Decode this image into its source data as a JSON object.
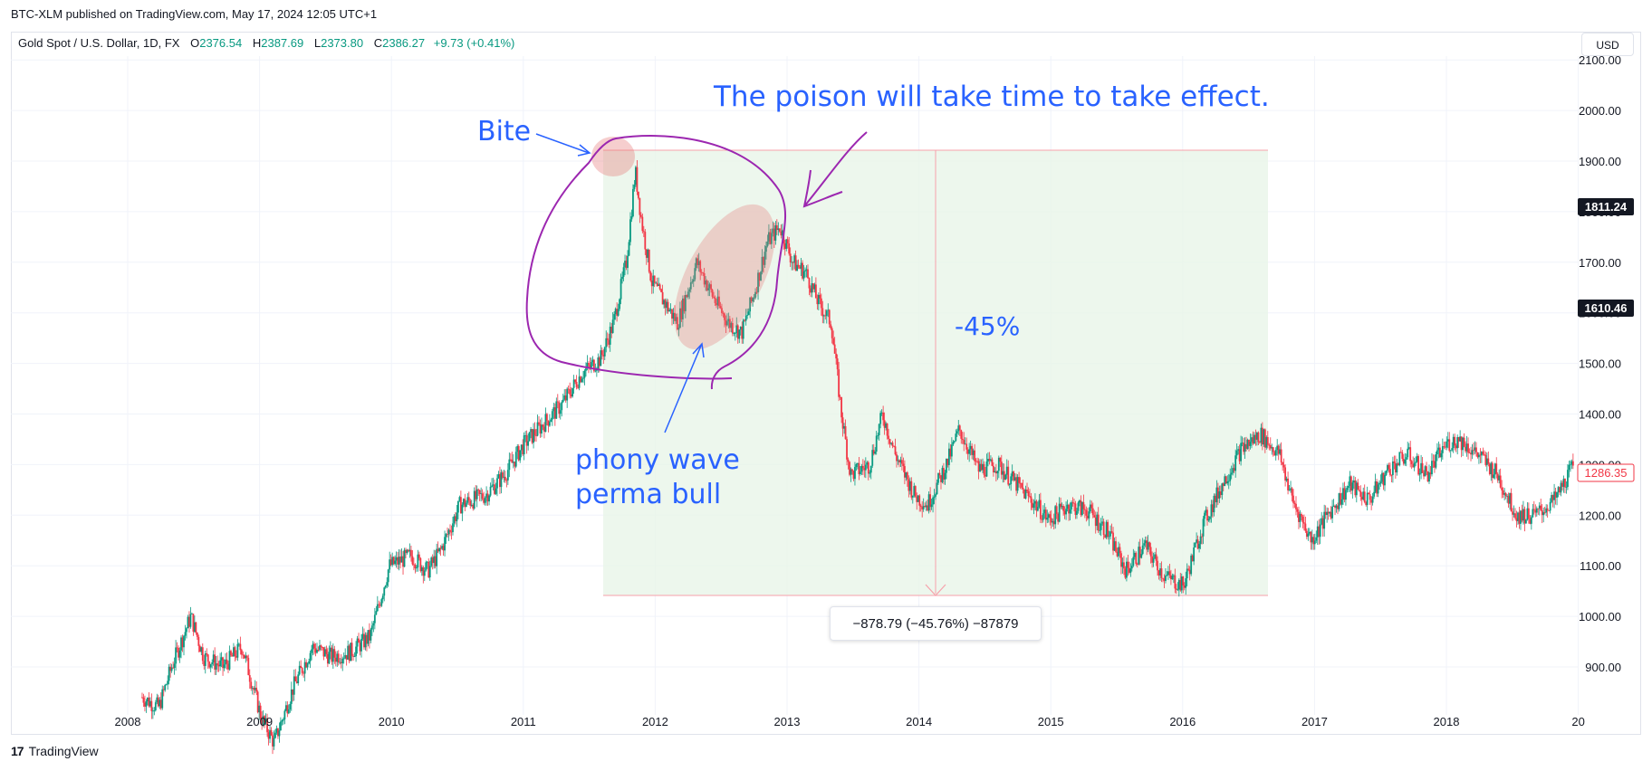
{
  "header": {
    "published": "BTC-XLM published on TradingView.com, May 17, 2024 12:05 UTC+1"
  },
  "legend": {
    "symbol": "Gold Spot / U.S. Dollar, 1D, FX",
    "o_label": "O",
    "o": "2376.54",
    "h_label": "H",
    "h": "2387.69",
    "l_label": "L",
    "l": "2373.80",
    "c_label": "C",
    "c": "2386.27",
    "change": "+9.73 (+0.41%)"
  },
  "currency_button": "USD",
  "footer": {
    "logo": "17",
    "brand": "TradingView"
  },
  "annotations": {
    "poison": "The poison will take time to take effect.",
    "bite": "Bite",
    "percent": "-45%",
    "phony_line1": "phony wave",
    "phony_line2": "perma bull"
  },
  "measure_label": "−878.79 (−45.76%) −87879",
  "colors": {
    "up": "#089981",
    "down": "#f23645",
    "annotation_blue": "#2962ff",
    "annotation_purple": "#9c27b0",
    "range_fill": "#e8f5e9",
    "pricetag_dark": "#131722",
    "pricetag_red": "#f23645"
  },
  "chart_data": {
    "type": "line",
    "title": "",
    "xlabel": "",
    "ylabel": "",
    "x_tick_labels": [
      "2008",
      "2009",
      "2010",
      "2011",
      "2012",
      "2013",
      "2014",
      "2015",
      "2016",
      "2017",
      "2018",
      "20"
    ],
    "y_tick_labels": [
      "900.00",
      "1000.00",
      "1100.00",
      "1200.00",
      "1300.00",
      "1400.00",
      "1500.00",
      "1600.00",
      "1700.00",
      "1800.00",
      "1900.00",
      "2000.00",
      "2100.00"
    ],
    "ylim": [
      820,
      2120
    ],
    "xlim": [
      2007.7,
      2019.0
    ],
    "grid": true,
    "series": [
      {
        "x": [
          2007.82,
          2007.95,
          2008.05,
          2008.2,
          2008.3,
          2008.45,
          2008.6,
          2008.75,
          2008.85,
          2009.0,
          2009.15,
          2009.3,
          2009.45,
          2009.6,
          2009.75,
          2009.92,
          2010.05,
          2010.15,
          2010.3,
          2010.5,
          2010.65,
          2010.8,
          2010.95,
          2011.1,
          2011.25,
          2011.4,
          2011.5,
          2011.6,
          2011.67,
          2011.72,
          2011.8,
          2011.9,
          2012.0,
          2012.15,
          2012.3,
          2012.4,
          2012.5,
          2012.6,
          2012.7,
          2012.8,
          2012.9,
          2013.0,
          2013.1,
          2013.2,
          2013.28,
          2013.35,
          2013.5,
          2013.6,
          2013.7,
          2013.85,
          2013.95,
          2014.1,
          2014.2,
          2014.35,
          2014.5,
          2014.65,
          2014.8,
          2014.9,
          2015.05,
          2015.2,
          2015.35,
          2015.5,
          2015.65,
          2015.8,
          2015.95,
          2016.1,
          2016.25,
          2016.4,
          2016.55,
          2016.7,
          2016.8,
          2016.95,
          2017.1,
          2017.25,
          2017.4,
          2017.55,
          2017.7,
          2017.85,
          2018.0,
          2018.1,
          2018.25,
          2018.4,
          2018.55,
          2018.7,
          2018.85,
          2019.0
        ],
        "y": [
          840,
          820,
          900,
          1000,
          920,
          900,
          940,
          800,
          750,
          860,
          940,
          920,
          930,
          960,
          1100,
          1120,
          1090,
          1130,
          1220,
          1240,
          1280,
          1340,
          1380,
          1420,
          1480,
          1510,
          1580,
          1700,
          1880,
          1780,
          1660,
          1620,
          1580,
          1700,
          1620,
          1580,
          1560,
          1640,
          1740,
          1770,
          1700,
          1680,
          1620,
          1580,
          1400,
          1280,
          1300,
          1400,
          1320,
          1240,
          1220,
          1300,
          1370,
          1290,
          1300,
          1260,
          1220,
          1190,
          1220,
          1210,
          1170,
          1090,
          1140,
          1080,
          1060,
          1180,
          1260,
          1330,
          1360,
          1320,
          1230,
          1150,
          1210,
          1260,
          1230,
          1290,
          1320,
          1280,
          1340,
          1350,
          1320,
          1280,
          1200,
          1200,
          1230,
          1300
        ]
      }
    ],
    "measured_range": {
      "from": 1921,
      "to": 1042,
      "change": "−878.79 (−45.76%) −87879"
    },
    "price_tags": [
      "1811.24",
      "1610.46",
      "1286.35"
    ]
  }
}
